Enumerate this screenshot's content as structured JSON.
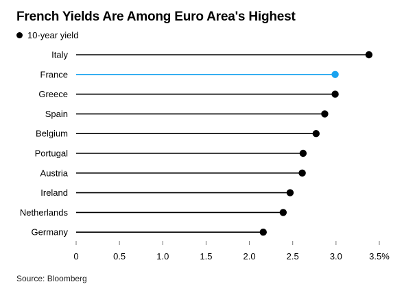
{
  "title": "French Yields Are Among Euro Area's Highest",
  "source": "Source: Bloomberg",
  "colors": {
    "default": "#000000",
    "highlight": "#1aa3ef"
  },
  "chart_data": {
    "type": "lollipop",
    "title": "French Yields Are Among Euro Area's Highest",
    "legend": [
      {
        "name": "10-year yield",
        "marker": "black-dot"
      }
    ],
    "legend_placement": "top-left",
    "categories": [
      "Italy",
      "France",
      "Greece",
      "Spain",
      "Belgium",
      "Portugal",
      "Austria",
      "Ireland",
      "Netherlands",
      "Germany"
    ],
    "series": [
      {
        "name": "10-year yield",
        "values": [
          3.38,
          2.99,
          2.99,
          2.87,
          2.77,
          2.62,
          2.61,
          2.47,
          2.39,
          2.16
        ],
        "highlight_index": 1
      }
    ],
    "xlim": [
      0,
      3.5
    ],
    "xticks": [
      0,
      0.5,
      1.0,
      1.5,
      2.0,
      2.5,
      3.0,
      3.5
    ],
    "xtick_labels": [
      "0",
      "0.5",
      "1.0",
      "1.5",
      "2.0",
      "2.5",
      "3.0",
      "3.5%"
    ],
    "grid": false
  }
}
